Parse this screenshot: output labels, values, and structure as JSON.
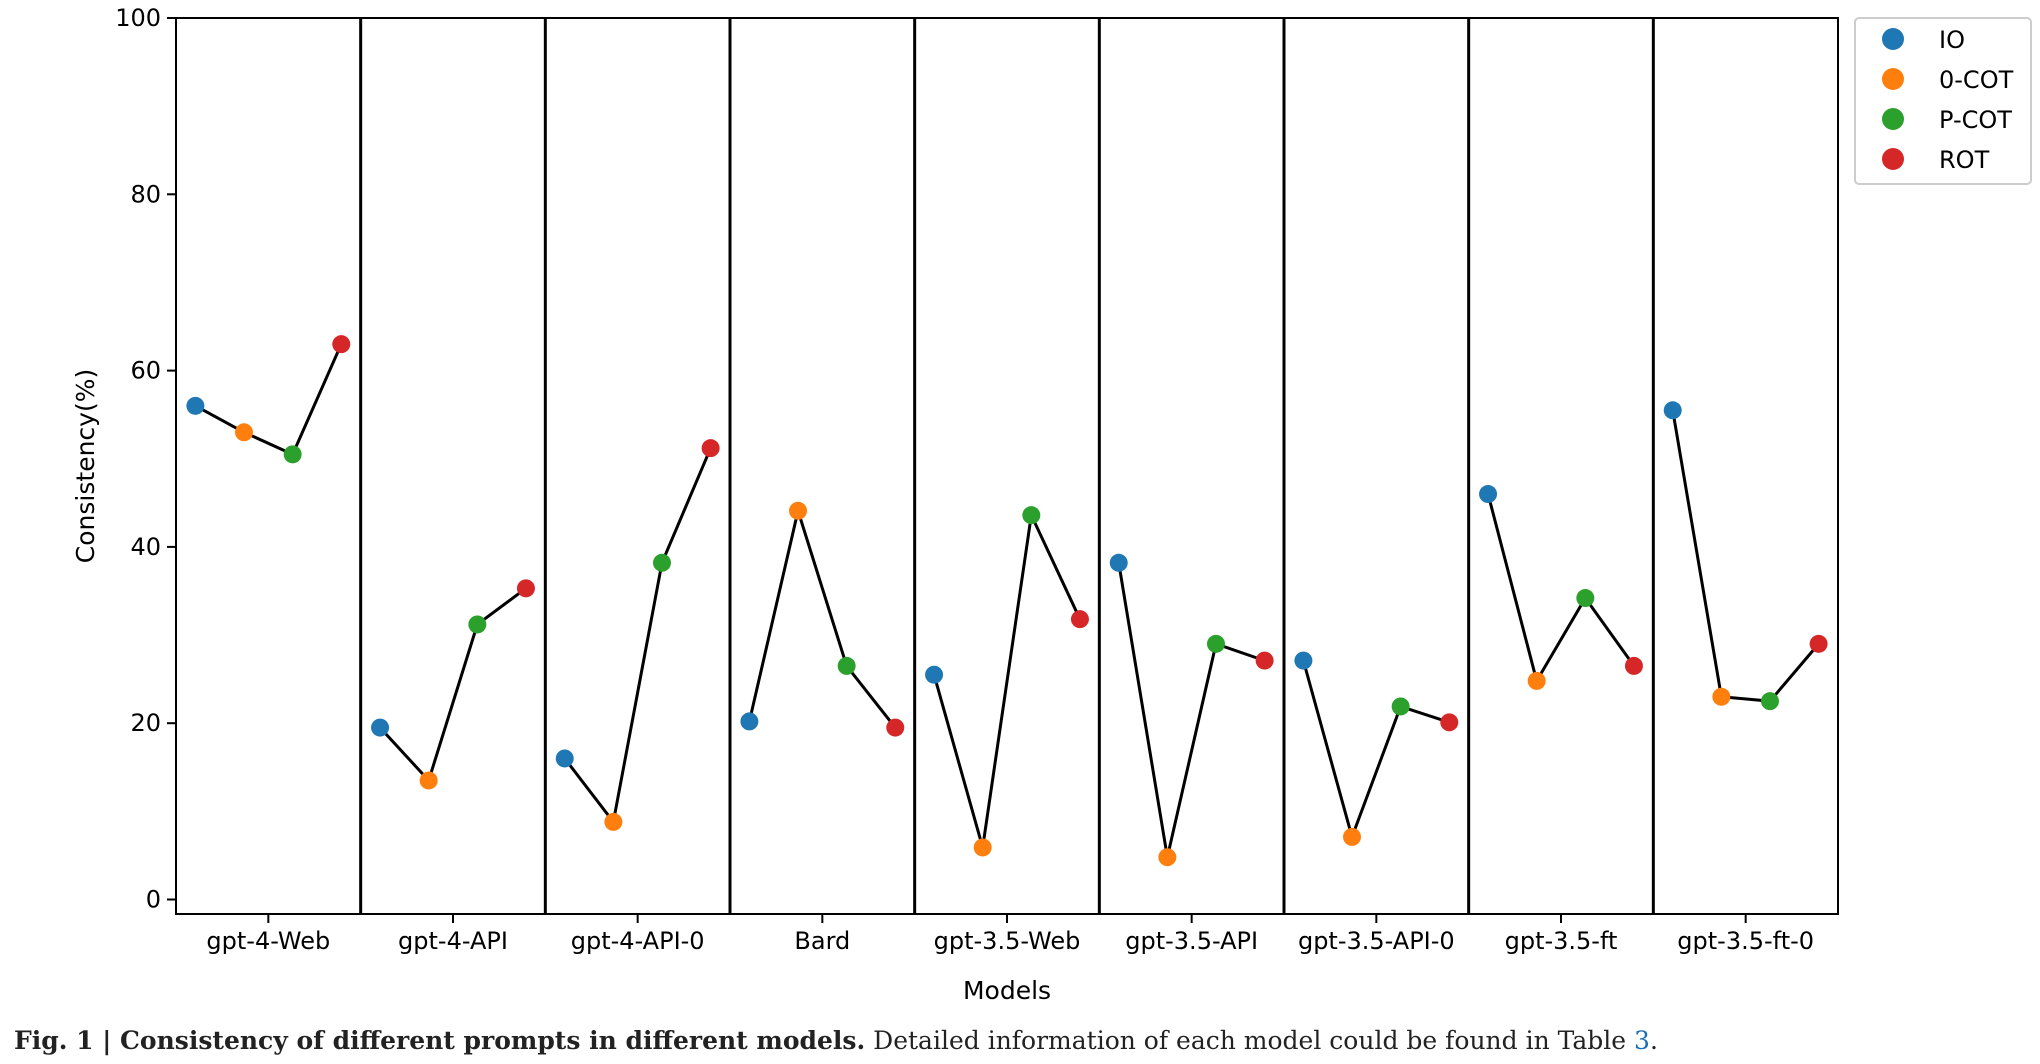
{
  "chart_data": {
    "type": "line",
    "xlabel": "Models",
    "ylabel": "Consistency(%)",
    "ylim": [
      0,
      100
    ],
    "yticks": [
      0,
      20,
      40,
      60,
      80,
      100
    ],
    "grid": false,
    "legend_position": "outside-top-right",
    "categories": [
      "gpt-4-Web",
      "gpt-4-API",
      "gpt-4-API-0",
      "Bard",
      "gpt-3.5-Web",
      "gpt-3.5-API",
      "gpt-3.5-API-0",
      "gpt-3.5-ft",
      "gpt-3.5-ft-0"
    ],
    "series": [
      {
        "name": "IO",
        "color": "#1f77b4",
        "values": [
          56.0,
          19.5,
          16.0,
          20.2,
          25.5,
          38.2,
          27.1,
          46.0,
          55.5
        ]
      },
      {
        "name": "0-COT",
        "color": "#ff7f0e",
        "values": [
          53.0,
          13.5,
          8.8,
          44.1,
          5.9,
          4.8,
          7.1,
          24.8,
          23.0
        ]
      },
      {
        "name": "P-COT",
        "color": "#2ca02c",
        "values": [
          50.5,
          31.2,
          38.2,
          26.5,
          43.6,
          29.0,
          21.9,
          34.2,
          22.5
        ]
      },
      {
        "name": "ROT",
        "color": "#d62728",
        "values": [
          63.0,
          35.3,
          51.2,
          19.5,
          31.8,
          27.1,
          20.1,
          26.5,
          29.0
        ]
      }
    ]
  },
  "caption": {
    "bold": "Fig. 1 | Consistency of different prompts in different models.",
    "text": " Detailed information of each model could be found in Table ",
    "link": "3",
    "end": "."
  }
}
